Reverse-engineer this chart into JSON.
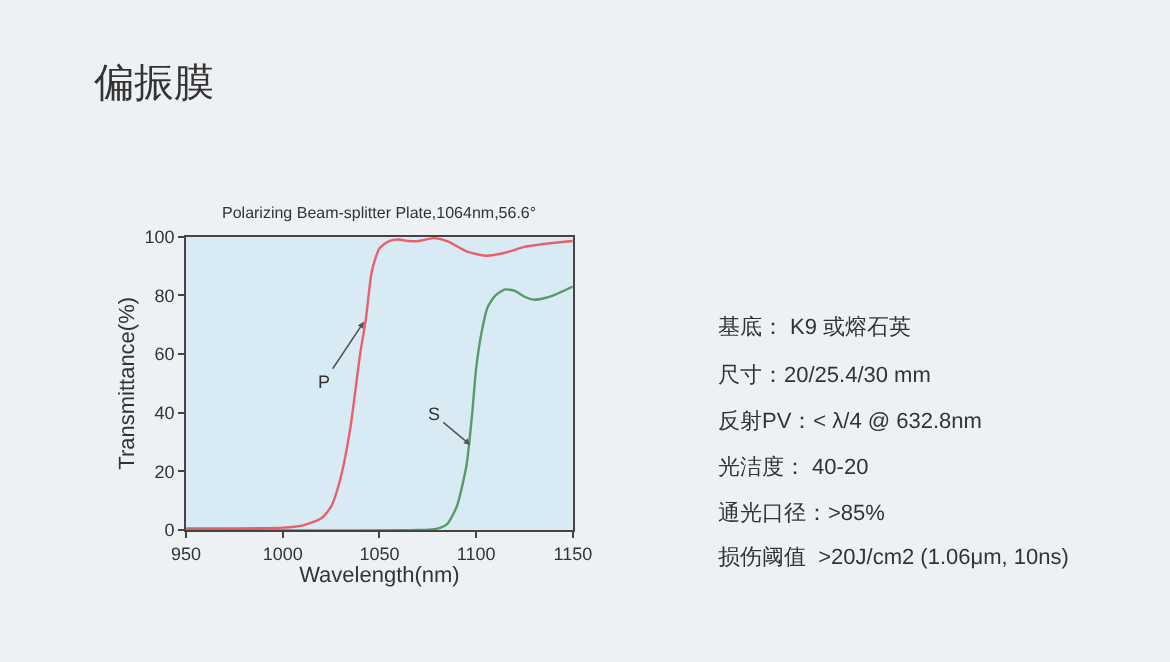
{
  "chart_data": [
    {
      "type": "other",
      "title": "偏振膜",
      "annotations": [
        "基底： K9 或熔石英",
        "尺寸：20/25.4/30 mm",
        "反射PV：< λ/4 @ 632.8nm",
        "光洁度： 40-20",
        "通光口径：>85%",
        "损伤阈值  >20J/cm2 (1.06μm, 10ns)"
      ]
    },
    {
      "type": "line",
      "title": "Polarizing Beam-splitter Plate,1064nm,56.6°",
      "xlabel": "Wavelength(nm)",
      "ylabel": "Transmittance(%)",
      "xlim": [
        950,
        1150
      ],
      "xticks": [
        950,
        1000,
        1050,
        1100,
        1150
      ],
      "ylim": [
        0,
        100
      ],
      "yticks": [
        0,
        20,
        40,
        60,
        80,
        100
      ],
      "grid": false,
      "marker": "none",
      "line_style": "solid",
      "series": [
        {
          "color": "#e8606a",
          "x": [
            950,
            1000,
            1010,
            1020,
            1025,
            1030,
            1035,
            1040,
            1043,
            1046,
            1050,
            1055,
            1060,
            1065,
            1070,
            1078,
            1085,
            1095,
            1105,
            1115,
            1125,
            1135,
            1150
          ],
          "values": [
            0.5,
            0.8,
            1.5,
            4,
            8,
            18,
            35,
            60,
            72,
            88,
            96,
            98.5,
            99,
            98.5,
            98.5,
            99.5,
            98.5,
            95,
            93.5,
            94.5,
            96.5,
            97.5,
            98.5
          ]
        },
        {
          "color": "#5a9a6a",
          "x": [
            950,
            1070,
            1080,
            1085,
            1090,
            1095,
            1098,
            1100,
            1103,
            1106,
            1110,
            1115,
            1120,
            1125,
            1130,
            1135,
            1140,
            1150
          ],
          "values": [
            0,
            0,
            0.5,
            2,
            8,
            22,
            40,
            55,
            68,
            76,
            80,
            82,
            81.5,
            79.5,
            78.5,
            79,
            80,
            83
          ]
        }
      ],
      "annotations": [
        {
          "text": "P",
          "x": 1042,
          "y": 71
        },
        {
          "text": "S",
          "x": 1097,
          "y": 29
        }
      ]
    }
  ]
}
